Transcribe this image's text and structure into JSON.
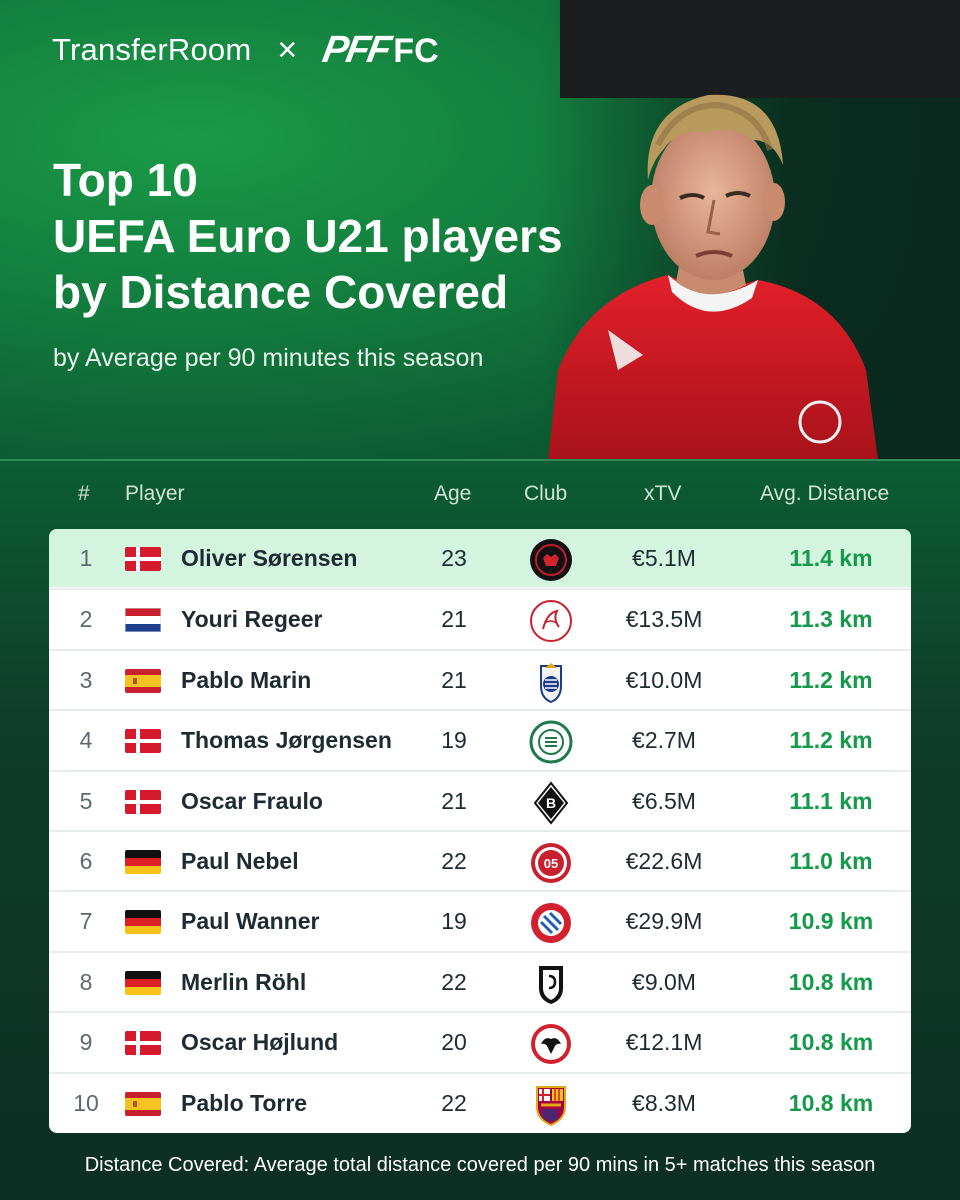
{
  "brand": {
    "left": "TransferRoom",
    "separator": "×",
    "right_a": "PFF",
    "right_b": "FC"
  },
  "title_lines": [
    "Top 10",
    "UEFA Euro U21 players",
    "by Distance Covered"
  ],
  "subtitle": "by Average per 90 minutes this season",
  "headers": {
    "rank": "#",
    "player": "Player",
    "age": "Age",
    "club": "Club",
    "xtv": "xTV",
    "distance": "Avg. Distance"
  },
  "rows": [
    {
      "rank": "1",
      "flag": "denmark",
      "name": "Oliver Sørensen",
      "age": "23",
      "club_icon": "midtjylland-icon",
      "xtv": "€5.1M",
      "distance": "11.4 km"
    },
    {
      "rank": "2",
      "flag": "netherlands",
      "name": "Youri Regeer",
      "age": "21",
      "club_icon": "ajax-icon",
      "xtv": "€13.5M",
      "distance": "11.3 km"
    },
    {
      "rank": "3",
      "flag": "spain",
      "name": "Pablo Marin",
      "age": "21",
      "club_icon": "real-sociedad-icon",
      "xtv": "€10.0M",
      "distance": "11.2 km"
    },
    {
      "rank": "4",
      "flag": "denmark",
      "name": "Thomas Jørgensen",
      "age": "19",
      "club_icon": "viborg-icon",
      "xtv": "€2.7M",
      "distance": "11.2 km"
    },
    {
      "rank": "5",
      "flag": "denmark",
      "name": "Oscar Fraulo",
      "age": "21",
      "club_icon": "gladbach-icon",
      "xtv": "€6.5M",
      "distance": "11.1 km"
    },
    {
      "rank": "6",
      "flag": "germany",
      "name": "Paul Nebel",
      "age": "22",
      "club_icon": "mainz-icon",
      "xtv": "€22.6M",
      "distance": "11.0 km"
    },
    {
      "rank": "7",
      "flag": "germany",
      "name": "Paul Wanner",
      "age": "19",
      "club_icon": "bayern-icon",
      "xtv": "€29.9M",
      "distance": "10.9 km"
    },
    {
      "rank": "8",
      "flag": "germany",
      "name": "Merlin Röhl",
      "age": "22",
      "club_icon": "freiburg-icon",
      "xtv": "€9.0M",
      "distance": "10.8 km"
    },
    {
      "rank": "9",
      "flag": "denmark",
      "name": "Oscar Højlund",
      "age": "20",
      "club_icon": "frankfurt-icon",
      "xtv": "€12.1M",
      "distance": "10.8 km"
    },
    {
      "rank": "10",
      "flag": "spain",
      "name": "Pablo Torre",
      "age": "22",
      "club_icon": "barcelona-icon",
      "xtv": "€8.3M",
      "distance": "10.8 km"
    }
  ],
  "footer": "Distance Covered: Average total distance covered per 90 mins in 5+ matches this season",
  "colors": {
    "accent_green": "#159a4b",
    "highlight_row": "#d3f4df",
    "topbar": "#1b1d1e"
  }
}
